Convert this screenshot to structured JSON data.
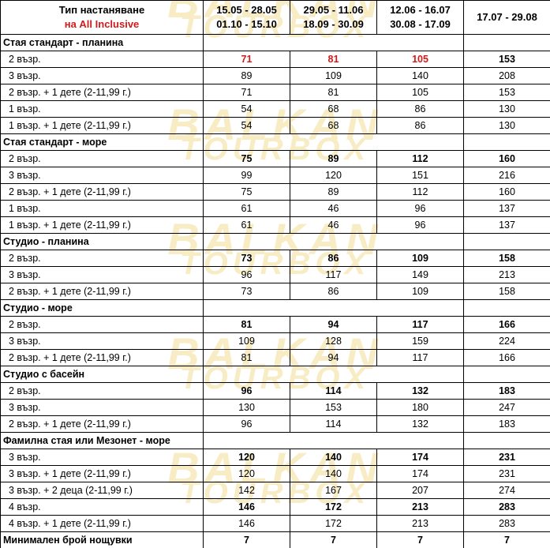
{
  "watermark": [
    "BALKAN",
    "TOURBOX"
  ],
  "header": {
    "col0_line1": "Тип настаняване",
    "col0_line2": "на All Inclusive",
    "periods": [
      [
        "15.05 - 28.05",
        "01.10 - 15.10"
      ],
      [
        "29.05 - 11.06",
        "18.09 - 30.09"
      ],
      [
        "12.06 - 16.07",
        "30.08 - 17.09"
      ],
      [
        "17.07 - 29.08",
        ""
      ]
    ]
  },
  "colors": {
    "highlight": "#d21a1a"
  },
  "sections": [
    {
      "title": "Стая стандарт - планина",
      "rows": [
        {
          "label": "2 възр.",
          "values": [
            "71",
            "81",
            "105",
            "153"
          ],
          "bold": true,
          "red": [
            true,
            true,
            true,
            false
          ]
        },
        {
          "label": "3 възр.",
          "values": [
            "89",
            "109",
            "140",
            "208"
          ]
        },
        {
          "label": "2 възр. + 1 дете (2-11,99 г.)",
          "values": [
            "71",
            "81",
            "105",
            "153"
          ]
        },
        {
          "label": "1 възр.",
          "values": [
            "54",
            "68",
            "86",
            "130"
          ]
        },
        {
          "label": "1 възр. + 1 дете (2-11,99 г.)",
          "values": [
            "54",
            "68",
            "86",
            "130"
          ]
        }
      ]
    },
    {
      "title": "Стая стандарт - море",
      "rows": [
        {
          "label": "2 възр.",
          "values": [
            "75",
            "89",
            "112",
            "160"
          ],
          "bold": true
        },
        {
          "label": "3 възр.",
          "values": [
            "99",
            "120",
            "151",
            "216"
          ]
        },
        {
          "label": "2 възр. + 1 дете (2-11,99 г.)",
          "values": [
            "75",
            "89",
            "112",
            "160"
          ]
        },
        {
          "label": "1 възр.",
          "values": [
            "61",
            "46",
            "96",
            "137"
          ]
        },
        {
          "label": "1 възр. + 1 дете (2-11,99 г.)",
          "values": [
            "61",
            "46",
            "96",
            "137"
          ]
        }
      ]
    },
    {
      "title": "Студио - планина",
      "rows": [
        {
          "label": "2 възр.",
          "values": [
            "73",
            "86",
            "109",
            "158"
          ],
          "bold": true
        },
        {
          "label": "3 възр.",
          "values": [
            "96",
            "117",
            "149",
            "213"
          ]
        },
        {
          "label": "2 възр. + 1 дете (2-11,99 г.)",
          "values": [
            "73",
            "86",
            "109",
            "158"
          ]
        }
      ]
    },
    {
      "title": "Студио - море",
      "rows": [
        {
          "label": "2 възр.",
          "values": [
            "81",
            "94",
            "117",
            "166"
          ],
          "bold": true
        },
        {
          "label": "3 възр.",
          "values": [
            "109",
            "128",
            "159",
            "224"
          ]
        },
        {
          "label": "2 възр. + 1 дете (2-11,99 г.)",
          "values": [
            "81",
            "94",
            "117",
            "166"
          ]
        }
      ]
    },
    {
      "title": "Студио с басейн",
      "rows": [
        {
          "label": "2 възр.",
          "values": [
            "96",
            "114",
            "132",
            "183"
          ],
          "bold": true
        },
        {
          "label": "3 възр.",
          "values": [
            "130",
            "153",
            "180",
            "247"
          ]
        },
        {
          "label": "2 възр. + 1 дете (2-11,99 г.)",
          "values": [
            "96",
            "114",
            "132",
            "183"
          ]
        }
      ]
    },
    {
      "title": "Фамилна стая или Мезонет - море",
      "rows": [
        {
          "label": "3 възр.",
          "values": [
            "120",
            "140",
            "174",
            "231"
          ],
          "bold": true
        },
        {
          "label": "3 възр. + 1 дете (2-11,99 г.)",
          "values": [
            "120",
            "140",
            "174",
            "231"
          ]
        },
        {
          "label": "3 възр. + 2 деца (2-11,99 г.)",
          "values": [
            "142",
            "167",
            "207",
            "274"
          ]
        },
        {
          "label": "4 възр.",
          "values": [
            "146",
            "172",
            "213",
            "283"
          ],
          "bold": true
        },
        {
          "label": "4 възр. + 1 дете (2-11,99 г.)",
          "values": [
            "146",
            "172",
            "213",
            "283"
          ]
        }
      ]
    }
  ],
  "min_nights": {
    "label": "Минимален брой нощувки",
    "values": [
      "7",
      "7",
      "7",
      "7"
    ]
  }
}
